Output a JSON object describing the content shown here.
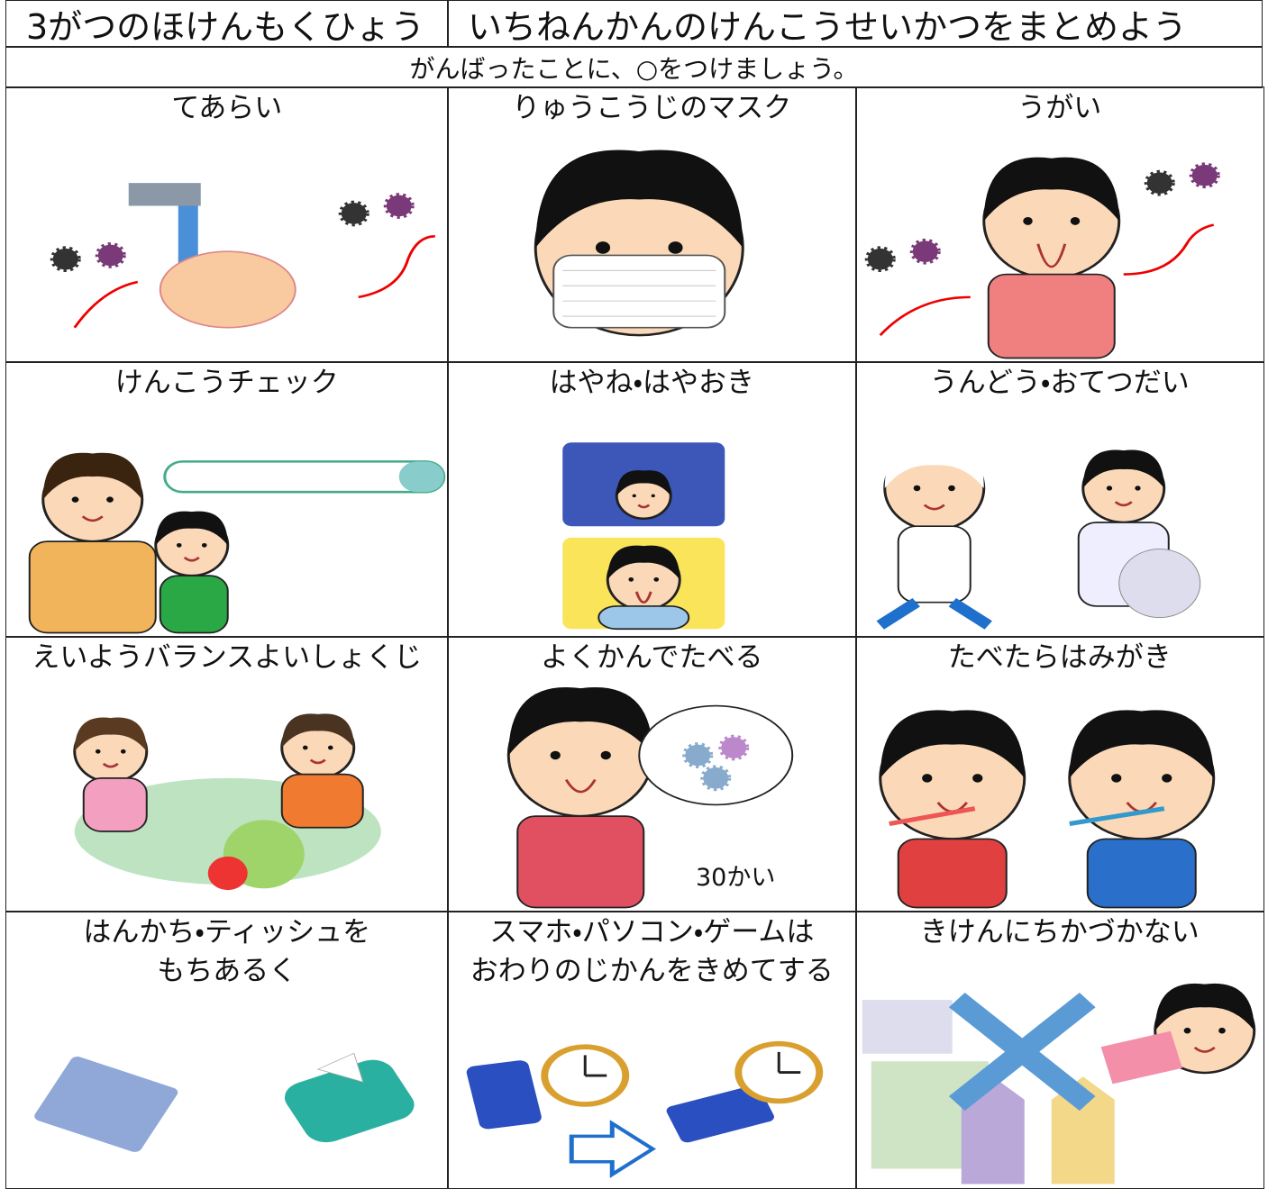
{
  "header": {
    "term_goal": "3がつのほけんもくひょう",
    "goal": "いちねんかんのけんこうせいかつをまとめよう"
  },
  "instruction": "がんばったことに、○をつけましょう。",
  "items": [
    {
      "label": [
        "てあらい"
      ]
    },
    {
      "label": [
        "りゅうこうじのマスク"
      ]
    },
    {
      "label": [
        "うがい"
      ]
    },
    {
      "label": [
        "けんこうチェック"
      ]
    },
    {
      "label": [
        "はやね・はやおき"
      ]
    },
    {
      "label": [
        "うんどう・おてつだい"
      ]
    },
    {
      "label": [
        "えいようバランスよいしょくじ"
      ]
    },
    {
      "label": [
        "よくかんでたべる"
      ],
      "note": "30かい"
    },
    {
      "label": [
        "たべたらはみがき"
      ]
    },
    {
      "label": [
        "はんかち・ティッシュを",
        "もちあるく"
      ]
    },
    {
      "label": [
        "スマホ・パソコン・ゲームは",
        "おわりのじかんをきめてする"
      ]
    },
    {
      "label": [
        "きけんにちかづかない"
      ]
    }
  ]
}
